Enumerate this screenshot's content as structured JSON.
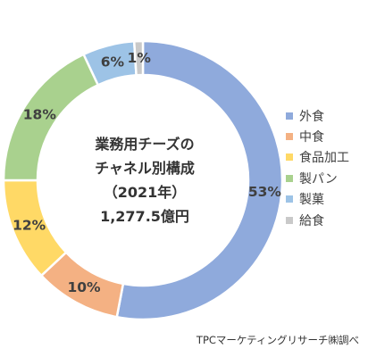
{
  "chart_data": {
    "type": "pie",
    "title_lines": [
      "業務用チーズの",
      "チャネル別構成",
      "（2021年）",
      "1,277.5億円"
    ],
    "categories": [
      "外食",
      "中食",
      "食品加工",
      "製パン",
      "製菓",
      "給食"
    ],
    "values": [
      53,
      10,
      12,
      18,
      6,
      1
    ],
    "value_labels": [
      "53%",
      "10%",
      "12%",
      "18%",
      "6%",
      "1%"
    ],
    "colors": [
      "#8faadc",
      "#f4b183",
      "#ffd966",
      "#a9d18e",
      "#9dc3e6",
      "#c9c9c9"
    ],
    "legend_position": "right"
  },
  "source": "TPCマーケティングリサーチ㈱調べ"
}
